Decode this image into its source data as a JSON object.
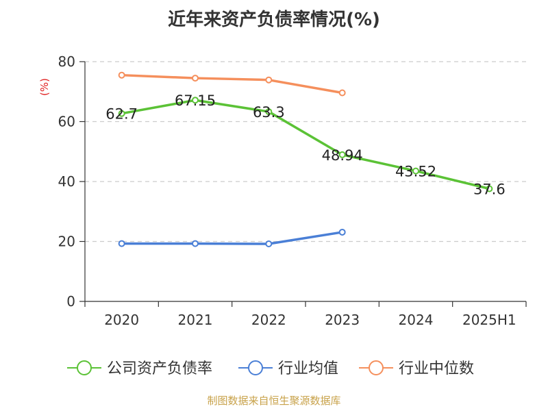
{
  "title": "近年来资产负债率情况(%)",
  "source": "制图数据来自恒生聚源数据库",
  "chart_data": {
    "type": "line",
    "title": "近年来资产负债率情况(%)",
    "ylabel": "(%)",
    "xlabel": "",
    "categories": [
      "2020",
      "2021",
      "2022",
      "2023",
      "2024",
      "2025H1"
    ],
    "ylim": [
      0,
      80
    ],
    "yticks": [
      0,
      20,
      40,
      60,
      80
    ],
    "grid": true,
    "legend_position": "bottom",
    "series": [
      {
        "name": "公司资产负债率",
        "color": "#5bc236",
        "values": [
          62.7,
          67.15,
          63.3,
          48.94,
          43.52,
          37.6
        ],
        "labels": [
          "62.7",
          "67.15",
          "63.3",
          "48.94",
          "43.52",
          "37.6"
        ],
        "show_labels": true
      },
      {
        "name": "行业均值",
        "color": "#4a7fd6",
        "values": [
          19.3,
          19.3,
          19.2,
          23.1,
          null,
          null
        ],
        "show_labels": false
      },
      {
        "name": "行业中位数",
        "color": "#f58f5c",
        "values": [
          75.5,
          74.5,
          73.9,
          69.6,
          null,
          null
        ],
        "show_labels": false
      }
    ]
  }
}
